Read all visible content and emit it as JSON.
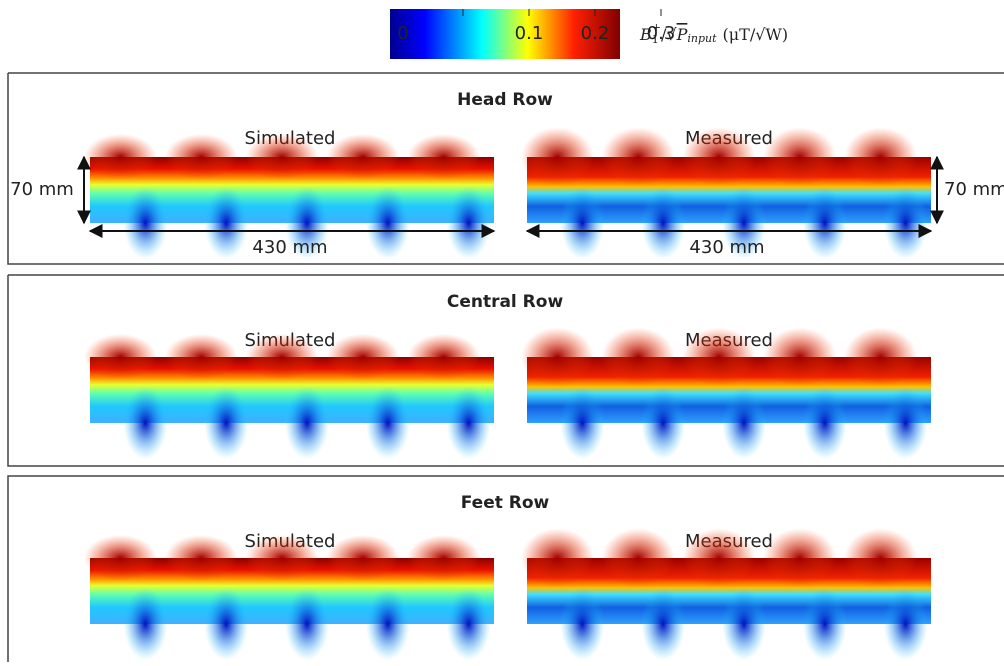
{
  "colorbar": {
    "ticks": [
      0,
      0.1,
      0.2,
      0.3
    ],
    "label": [
      "B",
      "1",
      "+",
      "/√",
      "P",
      "input",
      "(μT/√W)"
    ]
  },
  "panels": [
    {
      "title": "Head Row",
      "left": "Simulated",
      "right": "Measured",
      "height": "70 mm",
      "width": "430 mm"
    },
    {
      "title": "Central Row",
      "left": "Simulated",
      "right": "Measured"
    },
    {
      "title": "Feet Row",
      "left": "Simulated",
      "right": "Measured"
    }
  ]
}
